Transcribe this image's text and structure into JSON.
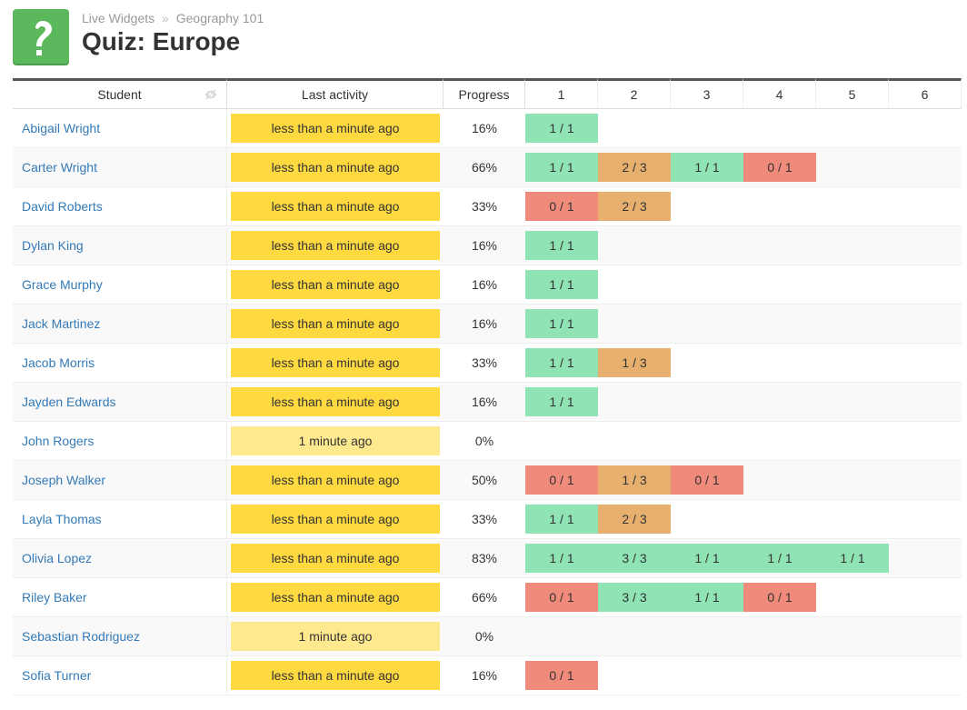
{
  "colors": {
    "brand_green": "#5cb85c",
    "link_blue": "#337ab7",
    "activity_recent": "#ffd940",
    "activity_older": "#ffe98f",
    "score_correct": "#8fe3b5",
    "score_partial": "#e8b06f",
    "score_wrong": "#f08a7a",
    "row_alt": "#f9f9f9",
    "border_dark": "#555555"
  },
  "header": {
    "breadcrumb_root": "Live Widgets",
    "breadcrumb_sep": "»",
    "breadcrumb_course": "Geography 101",
    "title": "Quiz: Europe"
  },
  "columns": {
    "student": "Student",
    "last_activity": "Last activity",
    "progress": "Progress",
    "questions": [
      "1",
      "2",
      "3",
      "4",
      "5",
      "6"
    ]
  },
  "activity_levels": {
    "recent": {
      "label": "less than a minute ago",
      "bg": "#ffd940"
    },
    "older": {
      "label": "1 minute ago",
      "bg": "#ffe98f"
    }
  },
  "score_colors": {
    "full": "#8fe3b5",
    "partial": "#e8b06f",
    "none": "#f08a7a"
  },
  "students": [
    {
      "name": "Abigail Wright",
      "activity": "recent",
      "progress": "16%",
      "scores": [
        {
          "v": "1 / 1",
          "c": "full"
        }
      ]
    },
    {
      "name": "Carter Wright",
      "activity": "recent",
      "progress": "66%",
      "scores": [
        {
          "v": "1 / 1",
          "c": "full"
        },
        {
          "v": "2 / 3",
          "c": "partial"
        },
        {
          "v": "1 / 1",
          "c": "full"
        },
        {
          "v": "0 / 1",
          "c": "none"
        }
      ]
    },
    {
      "name": "David Roberts",
      "activity": "recent",
      "progress": "33%",
      "scores": [
        {
          "v": "0 / 1",
          "c": "none"
        },
        {
          "v": "2 / 3",
          "c": "partial"
        }
      ]
    },
    {
      "name": "Dylan King",
      "activity": "recent",
      "progress": "16%",
      "scores": [
        {
          "v": "1 / 1",
          "c": "full"
        }
      ]
    },
    {
      "name": "Grace Murphy",
      "activity": "recent",
      "progress": "16%",
      "scores": [
        {
          "v": "1 / 1",
          "c": "full"
        }
      ]
    },
    {
      "name": "Jack Martinez",
      "activity": "recent",
      "progress": "16%",
      "scores": [
        {
          "v": "1 / 1",
          "c": "full"
        }
      ]
    },
    {
      "name": "Jacob Morris",
      "activity": "recent",
      "progress": "33%",
      "scores": [
        {
          "v": "1 / 1",
          "c": "full"
        },
        {
          "v": "1 / 3",
          "c": "partial"
        }
      ]
    },
    {
      "name": "Jayden Edwards",
      "activity": "recent",
      "progress": "16%",
      "scores": [
        {
          "v": "1 / 1",
          "c": "full"
        }
      ]
    },
    {
      "name": "John Rogers",
      "activity": "older",
      "progress": "0%",
      "scores": []
    },
    {
      "name": "Joseph Walker",
      "activity": "recent",
      "progress": "50%",
      "scores": [
        {
          "v": "0 / 1",
          "c": "none"
        },
        {
          "v": "1 / 3",
          "c": "partial"
        },
        {
          "v": "0 / 1",
          "c": "none"
        }
      ]
    },
    {
      "name": "Layla Thomas",
      "activity": "recent",
      "progress": "33%",
      "scores": [
        {
          "v": "1 / 1",
          "c": "full"
        },
        {
          "v": "2 / 3",
          "c": "partial"
        }
      ]
    },
    {
      "name": "Olivia Lopez",
      "activity": "recent",
      "progress": "83%",
      "scores": [
        {
          "v": "1 / 1",
          "c": "full"
        },
        {
          "v": "3 / 3",
          "c": "full"
        },
        {
          "v": "1 / 1",
          "c": "full"
        },
        {
          "v": "1 / 1",
          "c": "full"
        },
        {
          "v": "1 / 1",
          "c": "full"
        }
      ]
    },
    {
      "name": "Riley Baker",
      "activity": "recent",
      "progress": "66%",
      "scores": [
        {
          "v": "0 / 1",
          "c": "none"
        },
        {
          "v": "3 / 3",
          "c": "full"
        },
        {
          "v": "1 / 1",
          "c": "full"
        },
        {
          "v": "0 / 1",
          "c": "none"
        }
      ]
    },
    {
      "name": "Sebastian Rodriguez",
      "activity": "older",
      "progress": "0%",
      "scores": []
    },
    {
      "name": "Sofia Turner",
      "activity": "recent",
      "progress": "16%",
      "scores": [
        {
          "v": "0 / 1",
          "c": "none"
        }
      ]
    }
  ]
}
